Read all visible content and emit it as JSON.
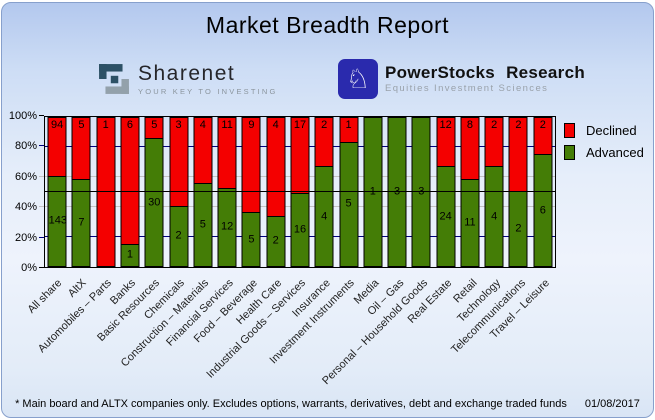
{
  "window": {
    "title": "Market Breadth Report"
  },
  "logos": {
    "sharenet": {
      "name": "Sharenet",
      "tagline": "YOUR KEY TO INVESTING"
    },
    "powerstocks": {
      "name": "PowerStocks Research",
      "tagline": "Equities Investment Sciences",
      "knight_icon": "white-chess-knight"
    }
  },
  "legend": {
    "declined_label": "Declined",
    "advanced_label": "Advanced"
  },
  "footer": {
    "note": "* Main board and ALTX companies only. Excludes options, warrants, derivatives, debt and exchange traded funds",
    "date": "01/08/2017"
  },
  "colors": {
    "declined": "#f40000",
    "advanced": "#447d06",
    "grid_navy": "#000080",
    "grid_gray": "#c3c3c3",
    "mid_line": "#000000"
  },
  "chart_data": {
    "type": "bar",
    "stacked": true,
    "normalized": "each bar scaled to 100% of advancers+decliners; numeric labels are company counts",
    "title": "Market Breadth Report",
    "xlabel": "",
    "ylabel": "",
    "ylim": [
      0,
      100
    ],
    "yticks": [
      "0%",
      "20%",
      "40%",
      "60%",
      "80%",
      "100%"
    ],
    "legend_position": "right",
    "gridlines": {
      "navy_levels": [
        20,
        80
      ],
      "gray_levels": [
        40,
        60
      ],
      "black_level": 50
    },
    "categories": [
      "All share",
      "AltX",
      "Automobiles – Parts",
      "Banks",
      "Basic Resources",
      "Chemicals",
      "Construction – Materials",
      "Financial Services",
      "Food – Beverage",
      "Health Care",
      "Industrial Goods – Services",
      "Insurance",
      "Investment Instruments",
      "Media",
      "Oil – Gas",
      "Personal – Household Goods",
      "Real Estate",
      "Retail",
      "Technology",
      "Telecommunications",
      "Travel – Leisure"
    ],
    "series": [
      {
        "name": "Declined",
        "color": "#f40000",
        "values": [
          94,
          5,
          1,
          6,
          5,
          3,
          4,
          11,
          9,
          4,
          17,
          2,
          1,
          0,
          0,
          0,
          12,
          8,
          2,
          2,
          2
        ]
      },
      {
        "name": "Advanced",
        "color": "#447d06",
        "values": [
          143,
          7,
          0,
          1,
          30,
          2,
          5,
          12,
          5,
          2,
          16,
          4,
          5,
          1,
          3,
          3,
          24,
          11,
          4,
          2,
          6
        ]
      }
    ]
  }
}
